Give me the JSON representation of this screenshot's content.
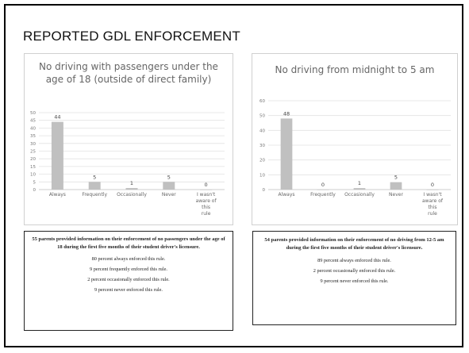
{
  "slide": {
    "title": "REPORTED GDL ENFORCEMENT"
  },
  "chart_data": [
    {
      "type": "bar",
      "title": "No driving with passengers under the age of 18 (outside of direct family)",
      "categories": [
        "Always",
        "Frequently",
        "Occasionally",
        "Never",
        "I wasn't aware of this rule"
      ],
      "values": [
        44,
        5,
        1,
        5,
        0
      ],
      "ylim": [
        0,
        50
      ],
      "yticks": [
        0,
        5,
        10,
        15,
        20,
        25,
        30,
        35,
        40,
        45,
        50
      ],
      "grid": true,
      "color": "#c0c0c0"
    },
    {
      "type": "bar",
      "title": "No driving from midnight to 5 am",
      "categories": [
        "Always",
        "Frequently",
        "Occasionally",
        "Never",
        "I wasn't aware of this rule"
      ],
      "values": [
        48,
        0,
        1,
        5,
        0
      ],
      "ylim": [
        0,
        60
      ],
      "yticks": [
        0,
        10,
        20,
        30,
        40,
        50,
        60
      ],
      "grid": true,
      "color": "#c0c0c0"
    }
  ],
  "notes": [
    {
      "summary": "55 parents provided information on their enforcement of no passengers under the age of 18 during the first five months of their student driver's licensure.",
      "stats": [
        "80 percent always enforced this rule.",
        "9 percent frequently enforced this rule.",
        "2 percent occasionally enforced this rule.",
        "9 percent never enforced this rule."
      ]
    },
    {
      "summary": "54 parents provided information on their enforcement of no driving from 12-5 am during the first five months of their student driver's licensure.",
      "stats": [
        "89 percent always enforced this rule.",
        "2 percent occasionally enforced this rule.",
        "9 percent never enforced this rule."
      ]
    }
  ]
}
